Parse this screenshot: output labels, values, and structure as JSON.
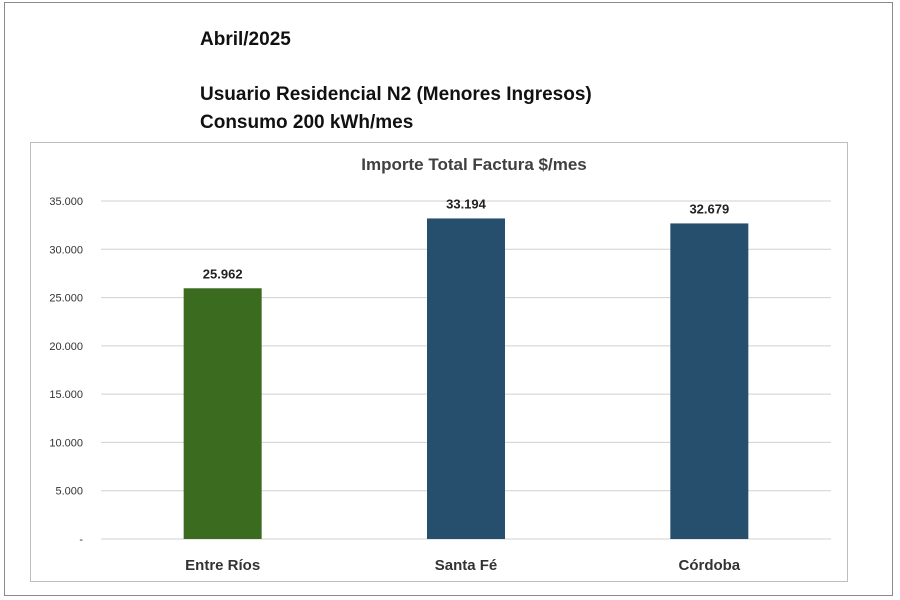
{
  "header": {
    "date": "Abril/2025",
    "user_type": "Usuario Residencial N2 (Menores Ingresos)",
    "consumption": "Consumo  200 kWh/mes"
  },
  "chart_data": {
    "type": "bar",
    "title": "Importe Total  Factura $/mes",
    "categories": [
      "Entre Ríos",
      "Santa Fé",
      "Córdoba"
    ],
    "values": [
      25962,
      33194,
      32679
    ],
    "value_labels": [
      "25.962",
      "33.194",
      "32.679"
    ],
    "colors": [
      "#3a6b1f",
      "#264f6e",
      "#264f6e"
    ],
    "ylim": [
      0,
      35000
    ],
    "yticks": [
      0,
      5000,
      10000,
      15000,
      20000,
      25000,
      30000,
      35000
    ],
    "ytick_labels": [
      "-",
      "5.000",
      "10.000",
      "15.000",
      "20.000",
      "25.000",
      "30.000",
      "35.000"
    ],
    "grid": true,
    "xlabel": "",
    "ylabel": ""
  }
}
